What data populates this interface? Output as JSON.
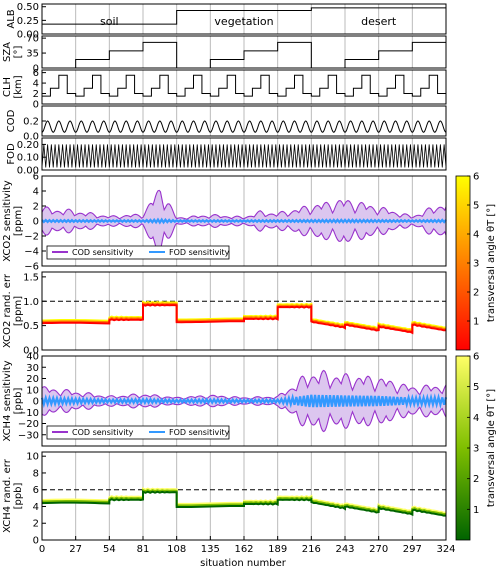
{
  "chart_data": {
    "type": "multi-panel line",
    "x_label": "situation number",
    "x_range": [
      0,
      324
    ],
    "x_ticks": [
      0,
      27,
      54,
      81,
      108,
      135,
      162,
      189,
      216,
      243,
      270,
      297,
      324
    ],
    "regions": [
      {
        "label": "soil",
        "x": 54
      },
      {
        "label": "vegetation",
        "x": 162
      },
      {
        "label": "desert",
        "x": 270
      }
    ],
    "panels": {
      "alb": {
        "ylabel": "ALB",
        "ylim": [
          0,
          0.55
        ],
        "yticks": [
          "0.00",
          "0.25",
          "0.50"
        ],
        "segments": [
          {
            "x": [
              0,
              108
            ],
            "value": 0.18
          },
          {
            "x": [
              108,
              216
            ],
            "value": 0.43
          },
          {
            "x": [
              216,
              324
            ],
            "value": 0.48
          }
        ]
      },
      "sza": {
        "ylabel": "SZA [°]",
        "ylim": [
          0,
          75
        ],
        "yticks": [
          "0",
          "35",
          "70"
        ],
        "cycle_levels": [
          0,
          20,
          40,
          60
        ],
        "cycle_period": 108
      },
      "clh": {
        "ylabel": "CLH [km]",
        "ylim": [
          0,
          6.5
        ],
        "yticks": [
          "0",
          "2",
          "4",
          "6"
        ],
        "cycle_levels": [
          1.5,
          3,
          5.5,
          2
        ],
        "cycle_period": 27
      },
      "cod": {
        "ylabel": "COD",
        "ylim": [
          0,
          0.4
        ],
        "yticks": [
          "0.0",
          "0.2"
        ],
        "min": 0.05,
        "max": 0.2,
        "cycle_period": 9
      },
      "fod": {
        "ylabel": "FOD",
        "ylim": [
          0,
          0.25
        ],
        "yticks": [
          "0.00",
          "0.10",
          "0.20"
        ],
        "min": 0.02,
        "max": 0.2,
        "cycle_period": 3
      },
      "xco2_sens": {
        "ylabel": "XCO2 sensitivity [ppm]",
        "ylim": [
          -6,
          6
        ],
        "yticks": [
          "−6",
          "−4",
          "−2",
          "0",
          "2",
          "4",
          "6"
        ],
        "legend": [
          "COD sensitivity",
          "FOD sensitivity"
        ],
        "envelope_ppm": [
          {
            "x": 0,
            "amp": 1.7
          },
          {
            "x": 27,
            "amp": 1.3
          },
          {
            "x": 54,
            "amp": 0.6
          },
          {
            "x": 81,
            "amp": 0.9
          },
          {
            "x": 95,
            "amp": 4.5
          },
          {
            "x": 108,
            "amp": 0.4
          },
          {
            "x": 135,
            "amp": 0.8
          },
          {
            "x": 162,
            "amp": 0.5
          },
          {
            "x": 175,
            "amp": 1.2
          },
          {
            "x": 189,
            "amp": 1.0
          },
          {
            "x": 216,
            "amp": 2.0
          },
          {
            "x": 243,
            "amp": 2.8
          },
          {
            "x": 270,
            "amp": 1.8
          },
          {
            "x": 297,
            "amp": 0.6
          },
          {
            "x": 324,
            "amp": 2.5
          }
        ]
      },
      "xco2_err": {
        "ylabel": "XCO2 rand. err [ppm]",
        "ylim": [
          0,
          1.6
        ],
        "yticks": [
          "0.0",
          "0.5",
          "1.0",
          "1.5"
        ],
        "reference": 1.0,
        "levels": [
          {
            "x": [
              0,
              54
            ],
            "value": 0.55
          },
          {
            "x": [
              54,
              81
            ],
            "value": 0.62
          },
          {
            "x": [
              81,
              108
            ],
            "value": 0.92
          },
          {
            "x": [
              108,
              162
            ],
            "value": 0.58
          },
          {
            "x": [
              162,
              189
            ],
            "value": 0.64
          },
          {
            "x": [
              189,
              216
            ],
            "value": 0.88
          },
          {
            "x": [
              216,
              243
            ],
            "value": 0.58
          },
          {
            "x": [
              243,
              270
            ],
            "value": 0.52
          },
          {
            "x": [
              270,
              297
            ],
            "value": 0.48
          },
          {
            "x": [
              297,
              324
            ],
            "value": 0.52
          }
        ]
      },
      "xch4_sens": {
        "ylabel": "XCH4 sensitivity [ppb]",
        "ylim": [
          -40,
          40
        ],
        "yticks": [
          "−30",
          "−20",
          "−10",
          "0",
          "10",
          "20",
          "30",
          "40"
        ],
        "legend": [
          "COD sensitivity",
          "FOD sensitivity"
        ],
        "envelope_ppb": [
          {
            "x": 0,
            "amp": 12
          },
          {
            "x": 27,
            "amp": 8
          },
          {
            "x": 54,
            "amp": 4
          },
          {
            "x": 81,
            "amp": 6
          },
          {
            "x": 108,
            "amp": 3
          },
          {
            "x": 135,
            "amp": 5
          },
          {
            "x": 162,
            "amp": 3
          },
          {
            "x": 189,
            "amp": 4
          },
          {
            "x": 216,
            "amp": 25
          },
          {
            "x": 243,
            "amp": 22
          },
          {
            "x": 270,
            "amp": 20
          },
          {
            "x": 297,
            "amp": 12
          },
          {
            "x": 324,
            "amp": 14
          }
        ]
      },
      "xch4_err": {
        "ylabel": "XCH4 rand. err [ppb]",
        "ylim": [
          0,
          10.5
        ],
        "yticks": [
          "0",
          "2",
          "4",
          "6",
          "8",
          "10"
        ],
        "reference": 6,
        "levels": [
          {
            "x": [
              0,
              54
            ],
            "value": 4.4
          },
          {
            "x": [
              54,
              81
            ],
            "value": 4.8
          },
          {
            "x": [
              81,
              108
            ],
            "value": 5.7
          },
          {
            "x": [
              108,
              162
            ],
            "value": 4.0
          },
          {
            "x": [
              162,
              189
            ],
            "value": 4.3
          },
          {
            "x": [
              189,
              216
            ],
            "value": 4.8
          },
          {
            "x": [
              216,
              243
            ],
            "value": 4.5
          },
          {
            "x": [
              243,
              270
            ],
            "value": 4.0
          },
          {
            "x": [
              270,
              297
            ],
            "value": 3.8
          },
          {
            "x": [
              297,
              324
            ],
            "value": 3.6
          }
        ]
      }
    },
    "colorbars": [
      {
        "label": "transversal angle θT [°]",
        "ticks": [
          "1",
          "2",
          "3",
          "4",
          "5",
          "6"
        ],
        "colormap": "red-yellow",
        "colors": [
          "#ff0000",
          "#ff7f00",
          "#ffff00"
        ]
      },
      {
        "label": "transversal angle θT [°]",
        "ticks": [
          "1",
          "2",
          "3",
          "4",
          "5",
          "6"
        ],
        "colormap": "green-yellow",
        "colors": [
          "#006400",
          "#7fbf00",
          "#ffff66"
        ]
      }
    ],
    "colors": {
      "cod": "#9933cc",
      "cod_fill": "#dcc6ef",
      "fod": "#3399ff",
      "err_red": "#cc2200",
      "err_green": "#2d7a00"
    }
  }
}
